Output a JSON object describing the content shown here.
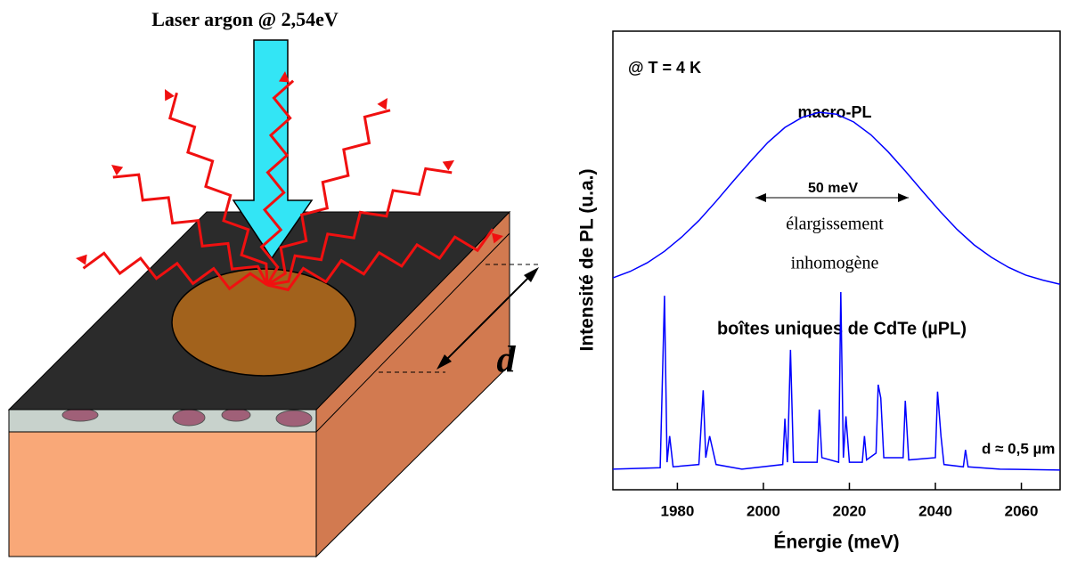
{
  "diagram": {
    "laser_label": "Laser argon @ 2,54eV",
    "thickness_label": "d"
  },
  "chart_data": {
    "type": "line",
    "annotations": {
      "temperature": "@ T = 4 K",
      "fwhm": "50 meV",
      "broadening": [
        "élargissement",
        "inhomogène"
      ],
      "thickness": "d ≈ 0,5 µm"
    },
    "xlabel": "Énergie (meV)",
    "ylabel": "Intensité de PL (u.a.)",
    "xlim": [
      1965,
      2069
    ],
    "ylim": [
      0,
      1
    ],
    "xticks": [
      1980,
      2000,
      2020,
      2040,
      2060
    ],
    "series": [
      {
        "name": "macro-PL",
        "color": "#0000ff",
        "x": [
          1965,
          1969,
          1973,
          1977,
          1981,
          1985,
          1989,
          1993,
          1997,
          2001,
          2005,
          2009,
          2013,
          2017,
          2021,
          2025,
          2029,
          2033,
          2037,
          2041,
          2045,
          2049,
          2053,
          2057,
          2061,
          2065,
          2069
        ],
        "values": [
          0.462,
          0.476,
          0.495,
          0.52,
          0.551,
          0.587,
          0.629,
          0.673,
          0.716,
          0.757,
          0.79,
          0.812,
          0.823,
          0.819,
          0.802,
          0.774,
          0.737,
          0.695,
          0.651,
          0.608,
          0.568,
          0.534,
          0.507,
          0.485,
          0.468,
          0.457,
          0.448
        ]
      },
      {
        "name": "boîtes uniques de CdTe (µPL)",
        "color": "#0000ff",
        "x": [
          1965,
          1976,
          1977,
          1977.6,
          1978.2,
          1979,
          1985,
          1986,
          1986.6,
          1987.5,
          1989,
          1995,
          2004.5,
          2005,
          2005.6,
          2006.3,
          2007,
          2012.5,
          2013,
          2013.6,
          2017.5,
          2018,
          2018.6,
          2019.2,
          2020,
          2023,
          2023.5,
          2024,
          2026.2,
          2026.7,
          2027.3,
          2028,
          2032.5,
          2033,
          2033.8,
          2040,
          2040.5,
          2041.3,
          2042,
          2046.5,
          2047,
          2047.6,
          2055,
          2069
        ],
        "values": [
          0.045,
          0.048,
          0.423,
          0.06,
          0.117,
          0.05,
          0.055,
          0.217,
          0.07,
          0.117,
          0.055,
          0.045,
          0.055,
          0.155,
          0.06,
          0.305,
          0.06,
          0.06,
          0.175,
          0.07,
          0.06,
          0.431,
          0.07,
          0.16,
          0.06,
          0.06,
          0.117,
          0.065,
          0.08,
          0.229,
          0.2,
          0.07,
          0.07,
          0.194,
          0.065,
          0.07,
          0.214,
          0.117,
          0.055,
          0.05,
          0.087,
          0.05,
          0.045,
          0.043
        ]
      }
    ]
  }
}
